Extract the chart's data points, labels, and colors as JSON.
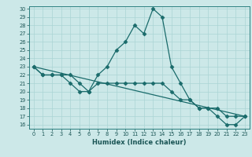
{
  "title": "",
  "xlabel": "Humidex (Indice chaleur)",
  "background_color": "#cce8e8",
  "line_color": "#1a6b6b",
  "grid_color": "#aad4d4",
  "xlim": [
    -0.5,
    23.5
  ],
  "ylim": [
    15.5,
    30.3
  ],
  "yticks": [
    16,
    17,
    18,
    19,
    20,
    21,
    22,
    23,
    24,
    25,
    26,
    27,
    28,
    29,
    30
  ],
  "xticks": [
    0,
    1,
    2,
    3,
    4,
    5,
    6,
    7,
    8,
    9,
    10,
    11,
    12,
    13,
    14,
    15,
    16,
    17,
    18,
    19,
    20,
    21,
    22,
    23
  ],
  "series0_x": [
    0,
    1,
    2,
    3,
    4,
    5,
    6,
    7,
    8,
    9,
    10,
    11,
    12,
    13,
    14,
    15,
    16,
    17,
    18,
    19,
    20,
    21,
    22,
    23
  ],
  "series0_y": [
    23,
    22,
    22,
    22,
    22,
    21,
    20,
    22,
    23,
    25,
    26,
    28,
    27,
    30,
    29,
    23,
    21,
    19,
    18,
    18,
    17,
    16,
    16,
    17
  ],
  "series1_x": [
    0,
    1,
    2,
    3,
    4,
    5,
    6,
    7,
    8,
    9,
    10,
    11,
    12,
    13,
    14,
    15,
    16,
    17,
    18,
    19,
    20,
    21,
    22,
    23
  ],
  "series1_y": [
    23,
    22,
    22,
    22,
    21,
    20,
    20,
    21,
    21,
    21,
    21,
    21,
    21,
    21,
    21,
    20,
    19,
    19,
    18,
    18,
    18,
    17,
    17,
    17
  ],
  "series2_x": [
    0,
    23
  ],
  "series2_y": [
    23,
    17
  ]
}
